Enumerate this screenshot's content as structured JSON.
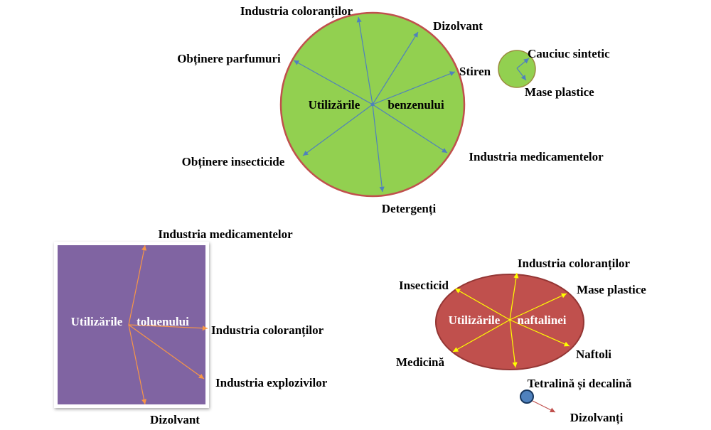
{
  "benzene": {
    "center_label_left": "Utilizările",
    "center_label_right": "benzenului",
    "uses": {
      "dyes": "Industria coloranților",
      "solvent": "Dizolvant",
      "perfumes": "Obținere parfumuri",
      "styrene": "Stiren",
      "insecticides": "Obținere insecticide",
      "medicines": "Industria medicamentelor",
      "detergents": "Detergenți"
    },
    "styrene_uses": {
      "rubber": "Cauciuc sintetic",
      "plastics": "Mase plastice"
    },
    "colors": {
      "fill": "#92d050",
      "stroke": "#c0504d",
      "arrow": "#4f81bd"
    }
  },
  "toluene": {
    "center_label_left": "Utilizările",
    "center_label_right": "toluenului",
    "uses": {
      "medicines": "Industria medicamentelor",
      "dyes": "Industria coloranților",
      "explosives": "Industria explozivilor",
      "solvent": "Dizolvant"
    },
    "colors": {
      "fill": "#8064a2",
      "arrow": "#f79646"
    }
  },
  "naphthalene": {
    "center_label_left": "Utilizările",
    "center_label_right": "naftalinei",
    "uses": {
      "dyes": "Industria coloranților",
      "insecticide": "Insecticid",
      "plastics": "Mase plastice",
      "medicine": "Medicină",
      "naphthols": "Naftoli",
      "tetralin": "Tetralină și decalină"
    },
    "tetralin_uses": {
      "solvents": "Dizolvanți"
    },
    "colors": {
      "fill": "#c0504d",
      "stroke": "#943634",
      "arrow": "#ffff00",
      "node": "#4f81bd"
    }
  }
}
